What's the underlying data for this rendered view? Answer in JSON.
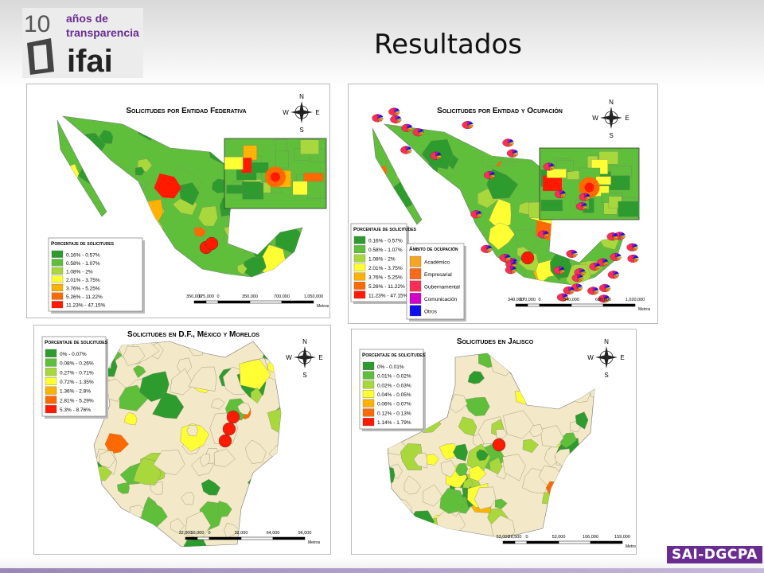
{
  "header": {
    "logo": {
      "number": "10",
      "line1": "años de",
      "line2": "transparencia",
      "brand": "ifai"
    },
    "title": "Resultados"
  },
  "maps": [
    {
      "title": "Solicitudes por Entidad Federativa",
      "legends": [
        {
          "title": "Porcentaje de solicitudes",
          "items": [
            {
              "label": "0.16% - 0.57%",
              "color": "#2e9b2e"
            },
            {
              "label": "0.58% - 1.07%",
              "color": "#5fbf3a"
            },
            {
              "label": "1.08% - 2%",
              "color": "#a8d83c"
            },
            {
              "label": "2.01% - 3.75%",
              "color": "#ffff33"
            },
            {
              "label": "3.76% - 5.25%",
              "color": "#ffb300"
            },
            {
              "label": "5.26% - 11.22%",
              "color": "#ff6a00"
            },
            {
              "label": "11.23% - 47.15%",
              "color": "#ff1a00"
            }
          ]
        }
      ],
      "scale": {
        "labels": [
          "350,000",
          "175,000",
          "0",
          "350,000",
          "700,000",
          "1,050,000"
        ],
        "unit": "Metros"
      },
      "compass": [
        "N",
        "E",
        "S",
        "W"
      ]
    },
    {
      "title": "Solicitudes por Entidad y Ocupación",
      "legends": [
        {
          "title": "Porcentaje de solicitudes",
          "items": [
            {
              "label": "0.16% - 0.57%",
              "color": "#2e9b2e"
            },
            {
              "label": "0.58% - 1.07%",
              "color": "#5fbf3a"
            },
            {
              "label": "1.08% - 2%",
              "color": "#a8d83c"
            },
            {
              "label": "2.01% - 3.75%",
              "color": "#ffff33"
            },
            {
              "label": "3.76% - 5.25%",
              "color": "#ffb300"
            },
            {
              "label": "5.26% - 11.22%",
              "color": "#ff6a00"
            },
            {
              "label": "11.23% - 47.15%",
              "color": "#ff1a00"
            }
          ]
        },
        {
          "title": "Ámbito de ocupación",
          "items": [
            {
              "label": "Académico",
              "color": "#f5a623"
            },
            {
              "label": "Empresarial",
              "color": "#ff6a1a"
            },
            {
              "label": "Gubernamental",
              "color": "#ff2d55"
            },
            {
              "label": "Comunicación",
              "color": "#d400c8"
            },
            {
              "label": "Otros",
              "color": "#1010ee"
            }
          ]
        }
      ],
      "scale": {
        "labels": [
          "340,000",
          "170,000",
          "0",
          "340,000",
          "680,000",
          "1,020,000"
        ],
        "unit": "Metros"
      },
      "compass": [
        "N",
        "E",
        "S",
        "W"
      ]
    },
    {
      "title": "Solicitudes en D.F., México y Morelos",
      "legends": [
        {
          "title": "Porcentaje de solicitudes",
          "items": [
            {
              "label": "0% - 0.07%",
              "color": "#2e9b2e"
            },
            {
              "label": "0.08% - 0.26%",
              "color": "#5fbf3a"
            },
            {
              "label": "0.27% - 0.71%",
              "color": "#a8d83c"
            },
            {
              "label": "0.72% - 1.35%",
              "color": "#ffff33"
            },
            {
              "label": "1.36% - 2.8%",
              "color": "#ffb300"
            },
            {
              "label": "2.81% - 5.29%",
              "color": "#ff6a00"
            },
            {
              "label": "5.3% - 8.76%",
              "color": "#ff1a00"
            }
          ]
        }
      ],
      "scale": {
        "labels": [
          "32,000",
          "16,000",
          "0",
          "32,000",
          "64,000",
          "96,000"
        ],
        "unit": "Metros"
      },
      "compass": [
        "N",
        "E",
        "S",
        "W"
      ]
    },
    {
      "title": "Solicitudes en Jalisco",
      "legends": [
        {
          "title": "Porcentaje de solicitudes",
          "items": [
            {
              "label": "0% - 0.01%",
              "color": "#2e9b2e"
            },
            {
              "label": "0.01% - 0.02%",
              "color": "#5fbf3a"
            },
            {
              "label": "0.02% - 0.03%",
              "color": "#a8d83c"
            },
            {
              "label": "0.04% - 0.05%",
              "color": "#ffff33"
            },
            {
              "label": "0.06% - 0.07%",
              "color": "#ffb300"
            },
            {
              "label": "0.12% - 0.13%",
              "color": "#ff6a00"
            },
            {
              "label": "1.14% - 1.79%",
              "color": "#ff1a00"
            }
          ]
        }
      ],
      "scale": {
        "labels": [
          "53,000",
          "26,500",
          "0",
          "53,000",
          "106,000",
          "159,000"
        ],
        "unit": "Metros"
      },
      "compass": [
        "N",
        "E",
        "S",
        "W"
      ]
    }
  ],
  "footer": "SAI-DGCPA"
}
